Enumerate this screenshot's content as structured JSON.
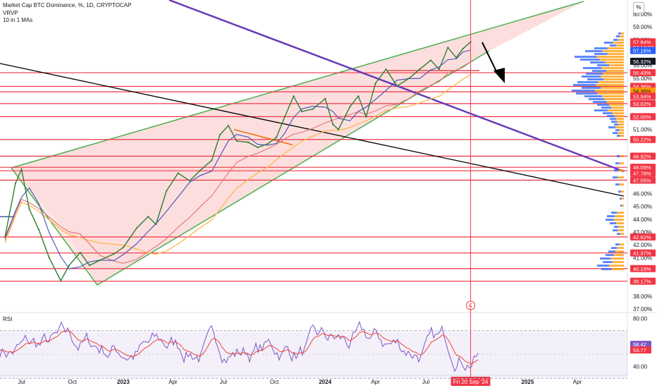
{
  "legend": {
    "title": "Market Cap BTC Dominance, %, 1D, CRYPTOCAP",
    "indicator_1": "VRVP",
    "indicator_2": "10 in 1 MAs"
  },
  "rsi_panel": {
    "label": "RSI"
  },
  "scale_badge": "%",
  "colors": {
    "wedge_fill": "#f8b6b6",
    "wedge_line": "#4caf50",
    "purple_line": "#673ab7",
    "black_line": "#000000",
    "level_line": "#f23645",
    "price_line": "#2e7d32",
    "ma_blue": "#3f51b5",
    "ma_red": "#e57373",
    "ma_orange": "#ffb74d",
    "rsi_line": "#7e57c2",
    "rsi_ma": "#f44336",
    "vp_blue": "#2962ff",
    "vp_orange": "#ff9800"
  },
  "chart_data": [
    {
      "type": "line",
      "title": "Market Cap BTC Dominance, %, 1D, CRYPTOCAP",
      "ylabel": "%",
      "ylim": [
        37.0,
        60.0
      ],
      "x_ticks": [
        "Jul",
        "Oct",
        "2023",
        "Apr",
        "Jul",
        "Oct",
        "2024",
        "Apr",
        "Jul",
        "Fri 20 Sep '24",
        "2025",
        "Apr"
      ],
      "y_ticks": [
        "60.00%",
        "59.00%",
        "58.00%",
        "56.00%",
        "55.00%",
        "51.00%",
        "46.00%",
        "45.00%",
        "44.00%",
        "43.00%",
        "42.00%",
        "41.00%",
        "38.00%",
        "37.00%"
      ],
      "series": [
        {
          "values": [
            [
              "2022-06-01",
              42.6
            ],
            [
              "2022-06-20",
              46.8
            ],
            [
              "2022-07-01",
              47.9
            ],
            [
              "2022-07-15",
              44.8
            ],
            [
              "2022-08-01",
              43.2
            ],
            [
              "2022-08-20",
              41.0
            ],
            [
              "2022-09-10",
              39.2
            ],
            [
              "2022-09-25",
              40.4
            ],
            [
              "2022-10-15",
              41.4
            ],
            [
              "2022-11-01",
              40.4
            ],
            [
              "2022-11-20",
              40.8
            ],
            [
              "2022-12-15",
              41.3
            ],
            [
              "2023-01-01",
              41.8
            ],
            [
              "2023-01-25",
              43.3
            ],
            [
              "2023-02-15",
              44.2
            ],
            [
              "2023-03-01",
              43.6
            ],
            [
              "2023-03-20",
              46.2
            ],
            [
              "2023-04-10",
              47.6
            ],
            [
              "2023-05-01",
              47.0
            ],
            [
              "2023-05-20",
              47.8
            ],
            [
              "2023-06-10",
              48.6
            ],
            [
              "2023-06-25",
              50.6
            ],
            [
              "2023-07-10",
              51.3
            ],
            [
              "2023-07-25",
              50.1
            ],
            [
              "2023-08-15",
              50.0
            ],
            [
              "2023-09-01",
              49.6
            ],
            [
              "2023-09-20",
              49.9
            ],
            [
              "2023-10-05",
              50.4
            ],
            [
              "2023-10-20",
              52.0
            ],
            [
              "2023-11-05",
              53.6
            ],
            [
              "2023-11-20",
              52.4
            ],
            [
              "2023-12-10",
              52.6
            ],
            [
              "2024-01-01",
              53.4
            ],
            [
              "2024-01-15",
              51.4
            ],
            [
              "2024-01-25",
              51.0
            ],
            [
              "2024-02-15",
              52.8
            ],
            [
              "2024-03-01",
              53.6
            ],
            [
              "2024-03-15",
              52.0
            ],
            [
              "2024-04-01",
              54.6
            ],
            [
              "2024-04-20",
              55.7
            ],
            [
              "2024-05-10",
              54.4
            ],
            [
              "2024-06-01",
              55.0
            ],
            [
              "2024-06-20",
              55.7
            ],
            [
              "2024-07-10",
              56.4
            ],
            [
              "2024-07-25",
              55.7
            ],
            [
              "2024-08-10",
              57.4
            ],
            [
              "2024-08-25",
              56.6
            ],
            [
              "2024-09-06",
              57.3
            ],
            [
              "2024-09-20",
              57.84
            ]
          ]
        }
      ],
      "horizontal_levels": [
        39.17,
        40.15,
        41.37,
        42.62,
        47.05,
        47.78,
        48.05,
        48.92,
        50.22,
        52.0,
        53.02,
        53.94,
        54.36,
        55.43
      ],
      "price_labels": {
        "last": "57.84%",
        "countdown": "07:13:50",
        "ma_1": "57.16%",
        "ma_2": "56.32%",
        "level_55": "55.43%",
        "level_54a": "54.36%",
        "level_54b": "54.36%",
        "level_53a": "53.94%",
        "level_53b": "53.02%",
        "level_52": "52.00%",
        "level_50": "50.22%",
        "level_48a": "48.92%",
        "level_48b": "48.05%",
        "level_47a": "47.78%",
        "level_47b": "47.05%",
        "level_42": "42.62%",
        "level_41": "41.37%",
        "level_40": "40.15%",
        "level_39": "39.17%"
      }
    },
    {
      "type": "line",
      "title": "RSI",
      "ylim": [
        35,
        85
      ],
      "y_ticks": [
        "80.00",
        "40.00"
      ],
      "band": [
        30,
        70
      ],
      "series": [
        {
          "name": "RSI",
          "last": "58.42"
        },
        {
          "name": "RSI MA",
          "last": "53.77"
        }
      ]
    }
  ]
}
